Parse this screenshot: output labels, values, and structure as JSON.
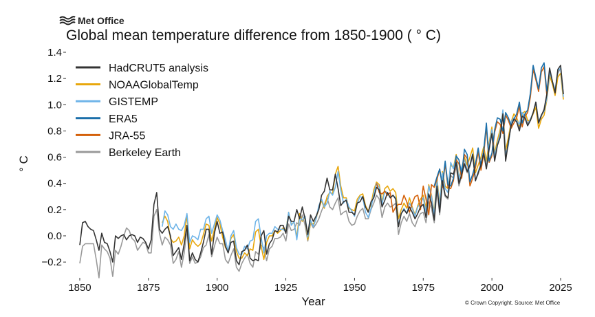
{
  "header": {
    "brand": "Met Office"
  },
  "footer": {
    "copyright": "© Crown Copyright. Source: Met Office"
  },
  "chart_data": {
    "type": "line",
    "title": "Global mean temperature difference from 1850-1900 ( ° C)",
    "xlabel": "Year",
    "ylabel": "° C",
    "xlim": [
      1845,
      2025
    ],
    "ylim": [
      -0.32,
      1.4
    ],
    "xticks": [
      1850,
      1875,
      1900,
      1925,
      1950,
      1975,
      2000,
      2025
    ],
    "yticks": [
      -0.2,
      0.0,
      0.2,
      0.4,
      0.6,
      0.8,
      1.0,
      1.2,
      1.4
    ],
    "ytick_labels": [
      "−0.2",
      "0.0",
      "0.2",
      "0.4",
      "0.6",
      "0.8",
      "1.0",
      "1.2",
      "1.4"
    ],
    "grid": false,
    "legend_position": "top-left",
    "series": [
      {
        "name": "HadCRUT5 analysis",
        "color": "#333333",
        "start": 1850,
        "values": [
          -0.07,
          0.1,
          0.11,
          0.07,
          0.05,
          0.04,
          -0.03,
          -0.11,
          0.02,
          -0.05,
          -0.06,
          -0.12,
          -0.2,
          0.0,
          -0.02,
          0.0,
          0.01,
          -0.03,
          0.0,
          0.01,
          0.0,
          -0.05,
          -0.01,
          -0.02,
          -0.05,
          -0.1,
          -0.03,
          0.24,
          0.33,
          0.05,
          0.02,
          0.05,
          0.07,
          0.0,
          -0.15,
          -0.12,
          -0.09,
          -0.18,
          -0.06,
          0.08,
          -0.19,
          -0.13,
          -0.18,
          -0.2,
          -0.13,
          -0.05,
          0.05,
          0.05,
          -0.14,
          0.02,
          0.11,
          0.02,
          0.03,
          -0.08,
          -0.13,
          -0.05,
          -0.04,
          -0.19,
          -0.22,
          -0.12,
          -0.11,
          -0.07,
          -0.17,
          -0.19,
          -0.18,
          -0.19,
          0.0,
          0.04,
          -0.14,
          -0.06,
          -0.03,
          0.04,
          0.03,
          0.08,
          0.08,
          0.02,
          0.15,
          0.11,
          0.11,
          0.2,
          0.13,
          0.22,
          0.13,
          0.01,
          0.16,
          0.11,
          0.15,
          0.2,
          0.31,
          0.34,
          0.44,
          0.35,
          0.35,
          0.47,
          0.36,
          0.23,
          0.26,
          0.27,
          0.18,
          0.18,
          0.16,
          0.25,
          0.26,
          0.3,
          0.22,
          0.18,
          0.26,
          0.29,
          0.37,
          0.35,
          0.22,
          0.27,
          0.33,
          0.29,
          0.31,
          0.28,
          0.07,
          0.17,
          0.2,
          0.17,
          0.22,
          0.18,
          0.13,
          0.17,
          0.22,
          0.24,
          0.14,
          0.32,
          0.25,
          0.12,
          0.38,
          0.18,
          0.42,
          0.31,
          0.29,
          0.48,
          0.47,
          0.56,
          0.4,
          0.47,
          0.55,
          0.49,
          0.54,
          0.62,
          0.42,
          0.48,
          0.54,
          0.63,
          0.51,
          0.66,
          0.78,
          0.57,
          0.69,
          0.75,
          0.93,
          0.57,
          0.72,
          0.84,
          0.89,
          0.87,
          0.8,
          0.91,
          0.9,
          0.84,
          0.88,
          0.94,
          1.02,
          0.86,
          0.92,
          0.96,
          1.08,
          1.28,
          1.18,
          1.09,
          1.27,
          1.3,
          1.08
        ]
      },
      {
        "name": "NOAAGlobalTemp",
        "color": "#E8A70C",
        "start": 1880,
        "values": [
          0.1,
          0.15,
          0.11,
          -0.02,
          -0.05,
          -0.04,
          -0.01,
          -0.07,
          0.0,
          0.16,
          -0.1,
          -0.03,
          -0.06,
          -0.08,
          -0.06,
          0.01,
          0.09,
          0.08,
          -0.04,
          0.05,
          0.14,
          0.09,
          -0.01,
          -0.09,
          -0.12,
          -0.02,
          0.01,
          -0.12,
          -0.17,
          -0.17,
          -0.13,
          -0.15,
          -0.1,
          -0.11,
          0.03,
          0.05,
          -0.08,
          -0.18,
          -0.05,
          0.0,
          0.0,
          0.04,
          0.02,
          0.04,
          0.06,
          0.04,
          0.18,
          0.09,
          0.1,
          -0.01,
          0.17,
          0.11,
          0.15,
          -0.03,
          0.1,
          0.09,
          0.13,
          0.21,
          0.27,
          0.21,
          0.3,
          0.33,
          0.32,
          0.47,
          0.53,
          0.38,
          0.29,
          0.29,
          0.21,
          0.2,
          0.19,
          0.28,
          0.31,
          0.32,
          0.23,
          0.19,
          0.24,
          0.35,
          0.41,
          0.39,
          0.26,
          0.36,
          0.38,
          0.34,
          0.36,
          0.33,
          0.13,
          0.2,
          0.25,
          0.21,
          0.29,
          0.22,
          0.16,
          0.23,
          0.28,
          0.31,
          0.21,
          0.39,
          0.31,
          0.18,
          0.44,
          0.24,
          0.49,
          0.38,
          0.36,
          0.54,
          0.52,
          0.62,
          0.44,
          0.52,
          0.6,
          0.54,
          0.6,
          0.67,
          0.48,
          0.54,
          0.6,
          0.68,
          0.57,
          0.71,
          0.83,
          0.63,
          0.73,
          0.81,
          0.95,
          0.65,
          0.75,
          0.87,
          0.93,
          0.9,
          0.84,
          0.93,
          0.95,
          0.88,
          0.88,
          0.93,
          0.98,
          0.82,
          0.89,
          0.92,
          1.04,
          1.22,
          1.16,
          1.07,
          1.21,
          1.24,
          1.04
        ]
      },
      {
        "name": "GISTEMP",
        "color": "#6EB4E8",
        "start": 1880,
        "values": [
          0.07,
          0.19,
          0.16,
          0.07,
          0.05,
          0.09,
          0.05,
          0.04,
          0.08,
          0.17,
          -0.05,
          0.0,
          -0.01,
          -0.03,
          0.05,
          0.05,
          0.13,
          0.15,
          0.02,
          0.09,
          0.16,
          0.12,
          0.04,
          -0.03,
          -0.12,
          0.0,
          0.04,
          -0.09,
          -0.14,
          -0.14,
          -0.08,
          -0.1,
          -0.04,
          -0.03,
          0.11,
          0.13,
          -0.01,
          -0.13,
          0.0,
          0.02,
          0.02,
          0.07,
          0.05,
          0.05,
          0.05,
          0.03,
          0.18,
          0.08,
          0.11,
          -0.03,
          0.14,
          0.12,
          0.15,
          -0.01,
          0.12,
          0.07,
          0.13,
          0.23,
          0.28,
          0.22,
          0.25,
          0.34,
          0.31,
          0.37,
          0.49,
          0.35,
          0.25,
          0.28,
          0.22,
          0.19,
          0.15,
          0.25,
          0.3,
          0.29,
          0.18,
          0.14,
          0.21,
          0.32,
          0.4,
          0.37,
          0.24,
          0.34,
          0.33,
          0.29,
          0.31,
          0.29,
          0.08,
          0.17,
          0.21,
          0.17,
          0.25,
          0.21,
          0.15,
          0.22,
          0.25,
          0.29,
          0.18,
          0.38,
          0.3,
          0.16,
          0.42,
          0.22,
          0.48,
          0.36,
          0.33,
          0.56,
          0.51,
          0.6,
          0.43,
          0.52,
          0.58,
          0.5,
          0.54,
          0.63,
          0.42,
          0.49,
          0.55,
          0.65,
          0.52,
          0.69,
          0.81,
          0.61,
          0.7,
          0.78,
          0.96,
          0.62,
          0.69,
          0.87,
          0.9,
          0.88,
          0.85,
          0.94,
          0.91,
          0.84,
          0.89,
          0.94,
          1.02,
          0.87,
          0.92,
          0.95,
          1.05,
          1.25,
          1.18,
          1.11,
          1.26,
          1.28,
          1.06
        ]
      },
      {
        "name": "ERA5",
        "color": "#1B6FAA",
        "start": 1979,
        "values": [
          0.38,
          0.45,
          0.51,
          0.38,
          0.57,
          0.39,
          0.38,
          0.44,
          0.61,
          0.58,
          0.47,
          0.66,
          0.62,
          0.41,
          0.47,
          0.55,
          0.67,
          0.53,
          0.65,
          0.86,
          0.57,
          0.63,
          0.81,
          0.9,
          0.89,
          0.8,
          0.94,
          0.9,
          0.84,
          0.89,
          0.93,
          1.02,
          0.86,
          0.93,
          0.96,
          1.09,
          1.3,
          1.21,
          1.12,
          1.28,
          1.32,
          1.1
        ]
      },
      {
        "name": "JRA-55",
        "color": "#D4610A",
        "start": 1958,
        "values": [
          0.4,
          0.33,
          0.32,
          0.34,
          0.31,
          0.33,
          0.18,
          0.22,
          0.24,
          0.24,
          0.31,
          0.26,
          0.18,
          0.25,
          0.3,
          0.31,
          0.2,
          0.38,
          0.28,
          0.16,
          0.39,
          0.37,
          0.43,
          0.51,
          0.37,
          0.55,
          0.37,
          0.36,
          0.42,
          0.58,
          0.55,
          0.44,
          0.62,
          0.59,
          0.38,
          0.44,
          0.52,
          0.64,
          0.5,
          0.62,
          0.83,
          0.56,
          0.61,
          0.79,
          0.87,
          0.85,
          0.78,
          0.92,
          0.88,
          0.82,
          0.86,
          0.9,
          0.99,
          0.83,
          0.91,
          0.94,
          1.06,
          1.27,
          1.19,
          1.1,
          1.25,
          1.29,
          1.07
        ]
      },
      {
        "name": "Berkeley Earth",
        "color": "#999999",
        "start": 1850,
        "values": [
          -0.21,
          -0.08,
          -0.06,
          -0.06,
          -0.06,
          -0.06,
          -0.18,
          -0.32,
          -0.07,
          -0.1,
          -0.12,
          -0.17,
          -0.31,
          -0.11,
          -0.14,
          -0.08,
          0.0,
          0.06,
          0.04,
          -0.02,
          -0.04,
          -0.11,
          -0.08,
          -0.05,
          -0.06,
          -0.13,
          -0.13,
          0.15,
          0.2,
          0.02,
          -0.07,
          -0.01,
          -0.03,
          -0.07,
          -0.21,
          -0.18,
          -0.12,
          -0.24,
          -0.13,
          0.05,
          -0.21,
          -0.16,
          -0.21,
          -0.2,
          -0.16,
          -0.09,
          -0.07,
          0.01,
          -0.16,
          -0.08,
          -0.01,
          -0.06,
          -0.06,
          -0.18,
          -0.21,
          -0.15,
          -0.1,
          -0.24,
          -0.27,
          -0.21,
          -0.17,
          -0.14,
          -0.21,
          -0.24,
          -0.12,
          -0.14,
          -0.07,
          -0.09,
          -0.19,
          -0.1,
          -0.08,
          -0.02,
          -0.02,
          -0.01,
          0.02,
          -0.04,
          0.09,
          0.04,
          0.05,
          0.1,
          0.08,
          0.16,
          0.08,
          -0.04,
          0.1,
          0.06,
          0.09,
          0.13,
          0.19,
          0.24,
          0.29,
          0.22,
          0.2,
          0.25,
          0.29,
          0.16,
          0.18,
          0.19,
          0.11,
          0.08,
          0.09,
          0.15,
          0.19,
          0.21,
          0.13,
          0.13,
          0.2,
          0.25,
          0.31,
          0.28,
          0.14,
          0.22,
          0.25,
          0.22,
          0.23,
          0.25,
          0.01,
          0.1,
          0.15,
          0.11,
          0.17,
          0.1,
          0.07,
          0.13,
          0.17,
          0.18,
          0.1,
          0.26,
          0.21,
          0.1,
          0.35,
          0.16,
          0.4,
          0.3,
          0.28,
          0.46,
          0.44,
          0.53,
          0.38,
          0.46,
          0.54,
          0.48,
          0.53,
          0.61,
          0.43,
          0.47,
          0.55,
          0.64,
          0.52,
          0.67,
          0.79,
          0.58,
          0.7,
          0.77,
          0.92,
          0.58,
          0.72,
          0.85,
          0.89,
          0.88,
          0.82,
          0.92,
          0.91,
          0.86,
          0.89,
          0.93,
          1.0,
          0.86,
          0.91,
          0.97,
          1.08,
          1.26,
          1.18,
          1.1,
          1.24,
          1.28,
          1.08
        ]
      }
    ]
  }
}
